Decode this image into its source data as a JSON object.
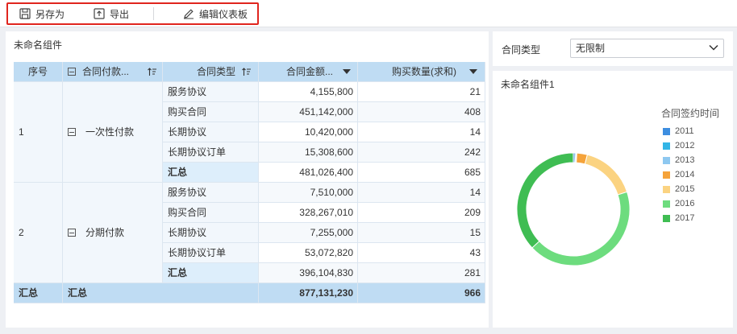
{
  "toolbar": {
    "save_as": "另存为",
    "export": "导出",
    "edit_dashboard": "编辑仪表板"
  },
  "table_widget": {
    "title": "未命名组件",
    "headers": {
      "seq": "序号",
      "payment": "合同付款...",
      "contract_type": "合同类型",
      "amount": "合同金额...",
      "quantity": "购买数量(求和)"
    },
    "groups": [
      {
        "seq": "1",
        "payment": "一次性付款",
        "rows": [
          {
            "type": "服务协议",
            "amount": "4,155,800",
            "qty": "21"
          },
          {
            "type": "购买合同",
            "amount": "451,142,000",
            "qty": "408"
          },
          {
            "type": "长期协议",
            "amount": "10,420,000",
            "qty": "14"
          },
          {
            "type": "长期协议订单",
            "amount": "15,308,600",
            "qty": "242"
          },
          {
            "type": "汇总",
            "amount": "481,026,400",
            "qty": "685"
          }
        ]
      },
      {
        "seq": "2",
        "payment": "分期付款",
        "rows": [
          {
            "type": "服务协议",
            "amount": "7,510,000",
            "qty": "14"
          },
          {
            "type": "购买合同",
            "amount": "328,267,010",
            "qty": "209"
          },
          {
            "type": "长期协议",
            "amount": "7,255,000",
            "qty": "15"
          },
          {
            "type": "长期协议订单",
            "amount": "53,072,820",
            "qty": "43"
          },
          {
            "type": "汇总",
            "amount": "396,104,830",
            "qty": "281"
          }
        ]
      }
    ],
    "grand_total": {
      "seq": "汇总",
      "payment": "汇总",
      "amount": "877,131,230",
      "qty": "966"
    }
  },
  "filter": {
    "label": "合同类型",
    "value": "无限制"
  },
  "chart_widget": {
    "title": "未命名组件1",
    "legend_title": "合同签约时间"
  },
  "chart_data": {
    "type": "pie",
    "variant": "donut",
    "legend_title": "合同签约时间",
    "categories": [
      "2011",
      "2012",
      "2013",
      "2014",
      "2015",
      "2016",
      "2017"
    ],
    "values": [
      0.5,
      0.3,
      0.2,
      3.0,
      16.0,
      43.0,
      37.0
    ],
    "colors": [
      "#3d8ee0",
      "#33b5e6",
      "#8ec8f0",
      "#f5a33a",
      "#fbd381",
      "#6ddc7e",
      "#3fbd53"
    ],
    "legend_position": "right"
  }
}
